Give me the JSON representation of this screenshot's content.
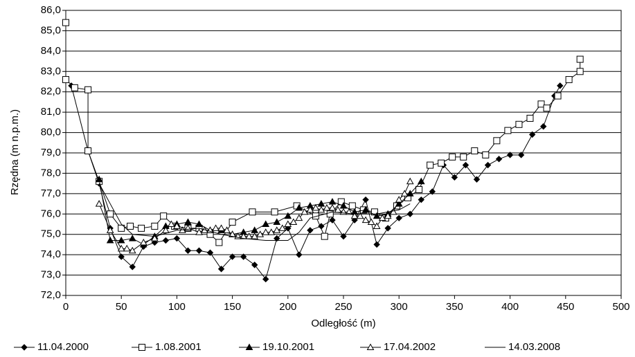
{
  "chart_data": {
    "type": "line",
    "x_label": "Odległość (m)",
    "y_label": "Rzędna (m n.p.m.)",
    "xlim": [
      0,
      500
    ],
    "xticks": [
      0,
      50,
      100,
      150,
      200,
      250,
      300,
      350,
      400,
      450,
      500
    ],
    "ylim": [
      72,
      86
    ],
    "yticks": [
      {
        "value": 72,
        "label": "72,0"
      },
      {
        "value": 73,
        "label": "73,0"
      },
      {
        "value": 74,
        "label": "74,0"
      },
      {
        "value": 75,
        "label": "75,0"
      },
      {
        "value": 76,
        "label": "76,0"
      },
      {
        "value": 77,
        "label": "77,0"
      },
      {
        "value": 78,
        "label": "78,0"
      },
      {
        "value": 79,
        "label": "79,0"
      },
      {
        "value": 80,
        "label": "80,0"
      },
      {
        "value": 81,
        "label": "81,0"
      },
      {
        "value": 82,
        "label": "82,0"
      },
      {
        "value": 83,
        "label": "83,0"
      },
      {
        "value": 84,
        "label": "84,0"
      },
      {
        "value": 85,
        "label": "85,0"
      },
      {
        "value": 86,
        "label": "86,0"
      }
    ],
    "grid": true,
    "legend": "bottom",
    "series": [
      {
        "name": "11.04.2000",
        "color": "#000000",
        "marker": "diamond",
        "marker_fill": "#000000",
        "x": [
          5,
          20,
          30,
          40,
          50,
          60,
          70,
          80,
          90,
          100,
          110,
          120,
          130,
          140,
          150,
          160,
          170,
          180,
          190,
          200,
          210,
          220,
          230,
          240,
          250,
          260,
          270,
          280,
          290,
          300,
          310,
          320,
          330,
          340,
          350,
          360,
          370,
          380,
          390,
          400,
          410,
          420,
          430,
          440,
          445
        ],
        "values": [
          82.3,
          79.1,
          77.5,
          75.3,
          73.9,
          73.4,
          74.4,
          74.6,
          74.7,
          74.8,
          74.2,
          74.2,
          74.1,
          73.3,
          73.9,
          73.9,
          73.5,
          72.8,
          74.8,
          75.3,
          74.0,
          75.2,
          75.4,
          75.7,
          74.9,
          75.7,
          76.7,
          74.5,
          75.3,
          75.8,
          76.0,
          76.7,
          77.1,
          78.4,
          77.8,
          78.4,
          77.7,
          78.4,
          78.7,
          78.9,
          78.9,
          79.9,
          80.3,
          81.8,
          82.3
        ]
      },
      {
        "name": "1.08.2001",
        "color": "#000000",
        "marker": "square",
        "marker_fill": "#ffffff",
        "x": [
          0,
          0,
          8,
          20,
          20,
          30,
          40,
          50,
          58,
          68,
          80,
          88,
          98,
          110,
          120,
          130,
          138,
          150,
          168,
          188,
          208,
          225,
          233,
          238,
          248,
          258,
          268,
          278,
          288,
          298,
          308,
          318,
          328,
          338,
          348,
          358,
          368,
          378,
          388,
          398,
          408,
          418,
          428,
          433,
          443,
          453,
          463,
          463
        ],
        "values": [
          85.4,
          82.6,
          82.2,
          82.1,
          79.1,
          77.6,
          76.0,
          75.3,
          75.4,
          75.3,
          75.4,
          75.9,
          75.4,
          75.3,
          75.3,
          75.0,
          74.6,
          75.6,
          76.1,
          76.1,
          76.4,
          75.9,
          74.9,
          76.0,
          76.6,
          76.4,
          76.2,
          76.1,
          75.8,
          76.4,
          76.8,
          77.2,
          78.4,
          78.5,
          78.8,
          78.8,
          79.1,
          78.9,
          79.6,
          80.1,
          80.4,
          80.7,
          81.4,
          81.2,
          81.8,
          82.6,
          83.0,
          83.6
        ]
      },
      {
        "name": "19.10.2001",
        "color": "#000000",
        "marker": "triangle",
        "marker_fill": "#000000",
        "x": [
          30,
          40,
          50,
          60,
          70,
          80,
          90,
          100,
          110,
          120,
          130,
          140,
          150,
          160,
          170,
          180,
          190,
          200,
          210,
          220,
          230,
          240,
          250,
          260,
          270,
          280,
          290,
          300,
          310,
          320
        ],
        "values": [
          77.7,
          74.7,
          74.7,
          74.8,
          74.5,
          74.9,
          75.4,
          75.5,
          75.6,
          75.5,
          75.2,
          75.2,
          75.0,
          75.1,
          75.2,
          75.5,
          75.6,
          75.9,
          76.3,
          76.4,
          76.5,
          76.6,
          76.4,
          76.1,
          76.2,
          75.9,
          76.0,
          76.5,
          77.0,
          77.6
        ]
      },
      {
        "name": "17.04.2002",
        "color": "#000000",
        "marker": "triangle",
        "marker_fill": "#ffffff",
        "x": [
          30,
          40,
          50,
          55,
          60,
          70,
          80,
          90,
          95,
          100,
          105,
          110,
          120,
          125,
          130,
          135,
          140,
          145,
          150,
          155,
          160,
          165,
          170,
          175,
          180,
          185,
          190,
          195,
          200,
          205,
          210,
          215,
          220,
          225,
          230,
          235,
          240,
          245,
          250,
          255,
          260,
          265,
          270,
          275,
          280,
          285,
          290,
          295,
          300,
          305,
          310
        ],
        "values": [
          76.5,
          75.2,
          74.3,
          74.3,
          74.2,
          74.6,
          74.8,
          75.2,
          75.5,
          75.4,
          75.2,
          75.3,
          75.1,
          75.2,
          75.2,
          75.3,
          75.3,
          75.2,
          75.0,
          74.9,
          74.9,
          74.9,
          74.9,
          75.0,
          75.1,
          75.1,
          75.2,
          75.3,
          75.5,
          75.6,
          75.8,
          76.1,
          76.2,
          76.3,
          76.2,
          76.3,
          76.3,
          76.2,
          76.1,
          76.1,
          75.9,
          75.9,
          75.7,
          75.6,
          75.4,
          75.8,
          75.9,
          76.1,
          76.7,
          77.0,
          77.6
        ]
      },
      {
        "name": "14.03.2008",
        "color": "#000000",
        "marker": "none",
        "marker_fill": "#000000",
        "x": [
          30,
          40,
          50,
          60,
          80,
          100,
          120,
          140,
          160,
          180,
          200,
          210,
          220,
          240,
          260,
          280,
          300,
          310
        ],
        "values": [
          77.5,
          76.5,
          75.5,
          75.0,
          74.9,
          75.2,
          75.3,
          75.0,
          74.8,
          74.7,
          74.7,
          75.1,
          75.8,
          76.1,
          76.0,
          76.0,
          76.2,
          76.5
        ]
      }
    ]
  }
}
